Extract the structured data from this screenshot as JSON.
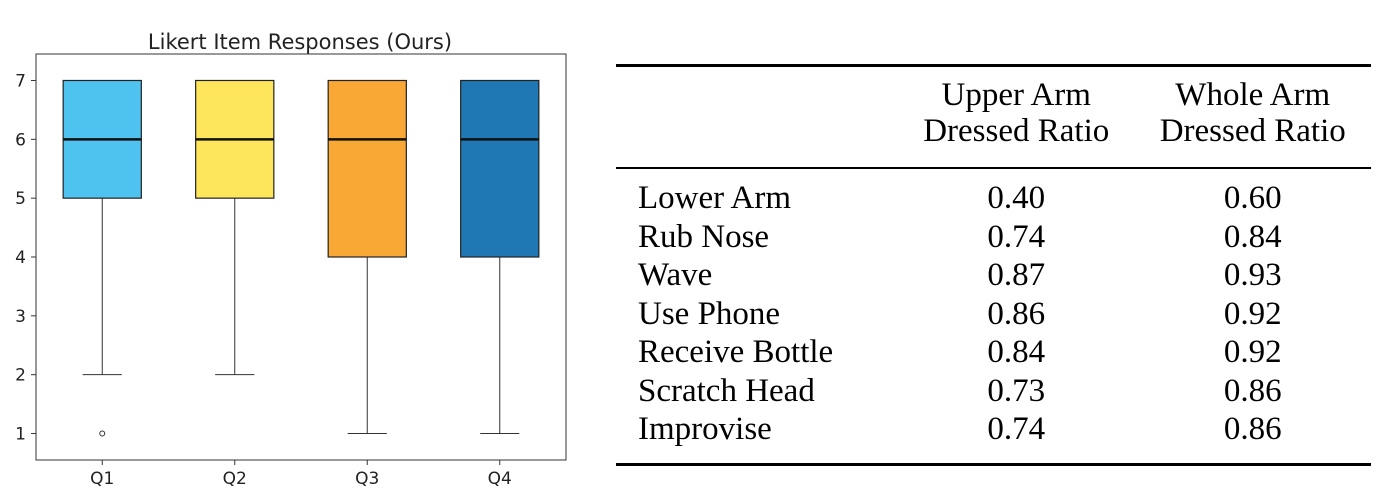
{
  "chart_data": {
    "type": "box",
    "title": "Likert Item Responses (Ours)",
    "categories": [
      "Q1",
      "Q2",
      "Q3",
      "Q4"
    ],
    "ylim": [
      0.55,
      7.45
    ],
    "yticks": [
      "1",
      "2",
      "3",
      "4",
      "5",
      "6",
      "7"
    ],
    "grid": false,
    "boxes": [
      {
        "name": "Q1",
        "whisker_low": 2,
        "q1": 5,
        "median": 6,
        "q3": 7,
        "whisker_high": 7,
        "outliers": [
          1
        ],
        "color": "#4fc3f0"
      },
      {
        "name": "Q2",
        "whisker_low": 2,
        "q1": 5,
        "median": 6,
        "q3": 7,
        "whisker_high": 7,
        "outliers": [],
        "color": "#fde55c"
      },
      {
        "name": "Q3",
        "whisker_low": 1,
        "q1": 4,
        "median": 6,
        "q3": 7,
        "whisker_high": 7,
        "outliers": [],
        "color": "#f9a735"
      },
      {
        "name": "Q4",
        "whisker_low": 1,
        "q1": 4,
        "median": 6,
        "q3": 7,
        "whisker_high": 7,
        "outliers": [],
        "color": "#1f78b4"
      }
    ]
  },
  "table": {
    "headers": [
      {
        "lines": [
          "",
          ""
        ]
      },
      {
        "lines": [
          "Upper Arm",
          "Dressed Ratio"
        ]
      },
      {
        "lines": [
          "Whole Arm",
          "Dressed Ratio"
        ]
      }
    ],
    "rows": [
      {
        "task": "Lower Arm",
        "upper": "0.40",
        "whole": "0.60"
      },
      {
        "task": "Rub Nose",
        "upper": "0.74",
        "whole": "0.84"
      },
      {
        "task": "Wave",
        "upper": "0.87",
        "whole": "0.93"
      },
      {
        "task": "Use Phone",
        "upper": "0.86",
        "whole": "0.92"
      },
      {
        "task": "Receive Bottle",
        "upper": "0.84",
        "whole": "0.92"
      },
      {
        "task": "Scratch Head",
        "upper": "0.73",
        "whole": "0.86"
      },
      {
        "task": "Improvise",
        "upper": "0.74",
        "whole": "0.86"
      }
    ]
  }
}
